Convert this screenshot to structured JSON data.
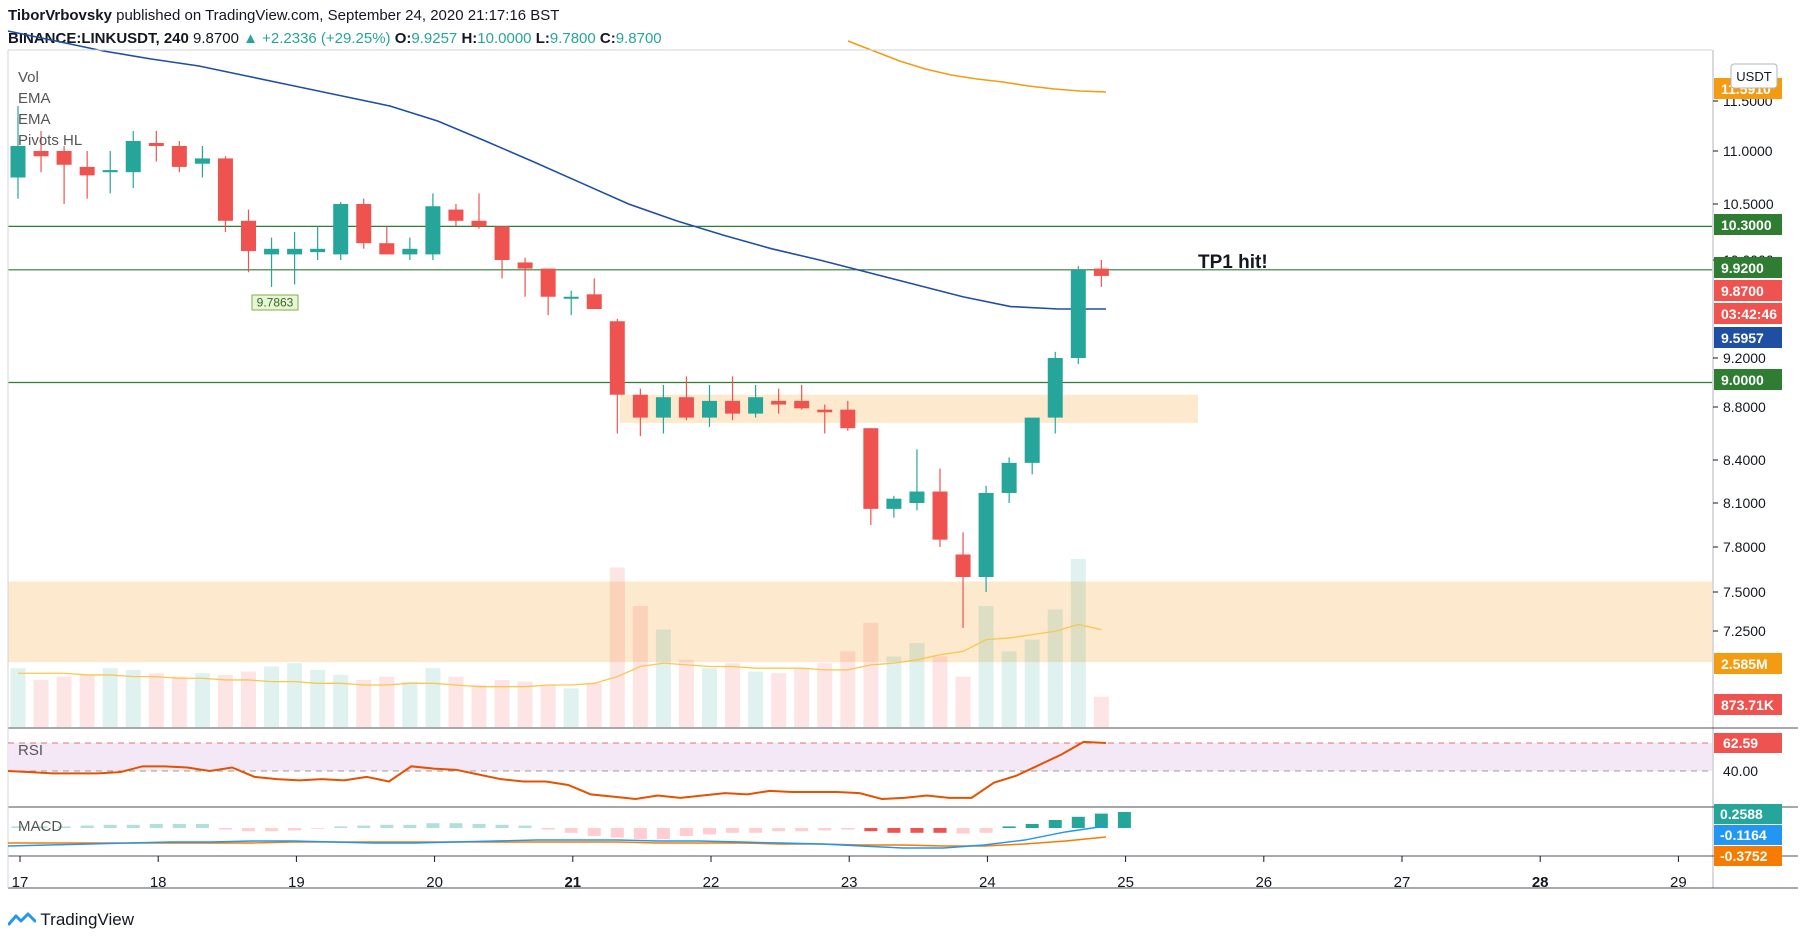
{
  "header": {
    "author": "TiborVrbovsky",
    "published": "published on TradingView.com, September 24, 2020 21:17:16 BST",
    "symbol": "BINANCE:LINKUSDT, 240",
    "last": "9.8700",
    "change": "+2.2336 (+29.25%)",
    "o_label": "O:",
    "o": "9.9257",
    "h_label": "H:",
    "h": "10.0000",
    "l_label": "L:",
    "l": "9.7800",
    "c_label": "C:",
    "c": "9.8700"
  },
  "indicators": [
    "Vol",
    "EMA",
    "EMA",
    "Pivots HL"
  ],
  "annotation": "TP1 hit!",
  "pivot_label": "9.7863",
  "currency": "USDT",
  "footer": {
    "brand": "TradingView"
  },
  "colors": {
    "up": "#26a69a",
    "down": "#ef5350",
    "ema_short": "#1e4fa3",
    "ema_long": "#f39c12",
    "hline": "#2e7d32",
    "zone": "#fde5c4",
    "rsi": "#e65100",
    "macd": "#2196f3",
    "signal": "#f57c00"
  },
  "chart_data": {
    "type": "candlestick",
    "price_axis": {
      "ticks": [
        "11.5000",
        "11.0000",
        "10.5000",
        "10.0000",
        "9.2000",
        "8.8000",
        "8.4000",
        "8.1000",
        "7.8000",
        "7.5000",
        "7.2500"
      ]
    },
    "time_axis": {
      "ticks": [
        "17",
        "18",
        "19",
        "20",
        "21",
        "22",
        "23",
        "24",
        "25",
        "26",
        "27",
        "28",
        "29"
      ],
      "bold": [
        "21",
        "28"
      ]
    },
    "price_labels": [
      {
        "text": "11.5910",
        "color": "#f39c12"
      },
      {
        "text": "10.3000",
        "color": "#2e7d32"
      },
      {
        "text": "9.9200",
        "color": "#2e7d32"
      },
      {
        "text": "9.8700",
        "color": "#ef5350"
      },
      {
        "text": "03:42:46",
        "color": "#ef5350"
      },
      {
        "text": "9.5957",
        "color": "#1e4fa3"
      },
      {
        "text": "9.0000",
        "color": "#2e7d32"
      },
      {
        "text": "2.585M",
        "color": "#f39c12"
      },
      {
        "text": "873.71K",
        "color": "#ef5350"
      }
    ],
    "horizontal_lines": [
      10.3,
      9.92,
      9.0
    ],
    "zones": [
      {
        "from": 8.68,
        "to": 8.9
      },
      {
        "from": 7.05,
        "to": 7.57
      }
    ],
    "candles": [
      {
        "o": 10.75,
        "h": 11.45,
        "l": 10.55,
        "c": 11.05
      },
      {
        "o": 11.0,
        "h": 11.2,
        "l": 10.8,
        "c": 10.95
      },
      {
        "o": 11.0,
        "h": 11.05,
        "l": 10.5,
        "c": 10.87
      },
      {
        "o": 10.85,
        "h": 11.0,
        "l": 10.55,
        "c": 10.77
      },
      {
        "o": 10.8,
        "h": 11.0,
        "l": 10.6,
        "c": 10.82
      },
      {
        "o": 10.8,
        "h": 11.2,
        "l": 10.65,
        "c": 11.1
      },
      {
        "o": 11.08,
        "h": 11.2,
        "l": 10.9,
        "c": 11.05
      },
      {
        "o": 11.05,
        "h": 11.1,
        "l": 10.8,
        "c": 10.85
      },
      {
        "o": 10.88,
        "h": 11.05,
        "l": 10.75,
        "c": 10.93
      },
      {
        "o": 10.93,
        "h": 10.95,
        "l": 10.25,
        "c": 10.35
      },
      {
        "o": 10.35,
        "h": 10.45,
        "l": 9.9,
        "c": 10.08
      },
      {
        "o": 10.05,
        "h": 10.2,
        "l": 9.78,
        "c": 10.1
      },
      {
        "o": 10.05,
        "h": 10.25,
        "l": 9.8,
        "c": 10.1
      },
      {
        "o": 10.07,
        "h": 10.3,
        "l": 10.0,
        "c": 10.1
      },
      {
        "o": 10.05,
        "h": 10.52,
        "l": 10.0,
        "c": 10.5
      },
      {
        "o": 10.5,
        "h": 10.55,
        "l": 10.1,
        "c": 10.15
      },
      {
        "o": 10.15,
        "h": 10.3,
        "l": 10.05,
        "c": 10.05
      },
      {
        "o": 10.05,
        "h": 10.2,
        "l": 10.0,
        "c": 10.1
      },
      {
        "o": 10.05,
        "h": 10.6,
        "l": 10.0,
        "c": 10.48
      },
      {
        "o": 10.45,
        "h": 10.5,
        "l": 10.3,
        "c": 10.35
      },
      {
        "o": 10.35,
        "h": 10.6,
        "l": 10.28,
        "c": 10.3
      },
      {
        "o": 10.3,
        "h": 10.3,
        "l": 9.85,
        "c": 10.0
      },
      {
        "o": 9.98,
        "h": 10.02,
        "l": 9.7,
        "c": 9.93
      },
      {
        "o": 9.93,
        "h": 9.93,
        "l": 9.55,
        "c": 9.7
      },
      {
        "o": 9.7,
        "h": 9.75,
        "l": 9.55,
        "c": 9.7
      },
      {
        "o": 9.72,
        "h": 9.85,
        "l": 9.6,
        "c": 9.6
      },
      {
        "o": 9.5,
        "h": 9.52,
        "l": 8.6,
        "c": 8.9
      },
      {
        "o": 8.9,
        "h": 8.95,
        "l": 8.58,
        "c": 8.72
      },
      {
        "o": 8.72,
        "h": 8.98,
        "l": 8.6,
        "c": 8.88
      },
      {
        "o": 8.88,
        "h": 9.05,
        "l": 8.7,
        "c": 8.72
      },
      {
        "o": 8.72,
        "h": 8.98,
        "l": 8.65,
        "c": 8.85
      },
      {
        "o": 8.85,
        "h": 9.05,
        "l": 8.7,
        "c": 8.75
      },
      {
        "o": 8.75,
        "h": 8.98,
        "l": 8.72,
        "c": 8.88
      },
      {
        "o": 8.85,
        "h": 8.95,
        "l": 8.75,
        "c": 8.82
      },
      {
        "o": 8.85,
        "h": 8.98,
        "l": 8.78,
        "c": 8.79
      },
      {
        "o": 8.78,
        "h": 8.82,
        "l": 8.6,
        "c": 8.76
      },
      {
        "o": 8.78,
        "h": 8.85,
        "l": 8.62,
        "c": 8.64
      },
      {
        "o": 8.64,
        "h": 8.64,
        "l": 7.95,
        "c": 8.06
      },
      {
        "o": 8.06,
        "h": 8.15,
        "l": 8.0,
        "c": 8.13
      },
      {
        "o": 8.1,
        "h": 8.48,
        "l": 8.05,
        "c": 8.18
      },
      {
        "o": 8.18,
        "h": 8.34,
        "l": 7.8,
        "c": 7.85
      },
      {
        "o": 7.75,
        "h": 7.9,
        "l": 7.27,
        "c": 7.6
      },
      {
        "o": 7.6,
        "h": 8.22,
        "l": 7.5,
        "c": 8.17
      },
      {
        "o": 8.17,
        "h": 8.42,
        "l": 8.1,
        "c": 8.38
      },
      {
        "o": 8.38,
        "h": 8.7,
        "l": 8.3,
        "c": 8.72
      },
      {
        "o": 8.72,
        "h": 9.25,
        "l": 8.6,
        "c": 9.2
      },
      {
        "o": 9.2,
        "h": 9.95,
        "l": 9.15,
        "c": 9.92
      },
      {
        "o": 9.93,
        "h": 10.0,
        "l": 9.78,
        "c": 9.87
      }
    ],
    "ema_short": [
      12.2,
      12.1,
      12.0,
      11.92,
      11.85,
      11.75,
      11.65,
      11.55,
      11.45,
      11.3,
      11.1,
      10.9,
      10.7,
      10.5,
      10.35,
      10.22,
      10.1,
      10.0,
      9.9,
      9.8,
      9.7,
      9.62,
      9.6,
      9.6
    ],
    "ema_long_partial": [
      12.1,
      12.0,
      11.9,
      11.82,
      11.76,
      11.72,
      11.69,
      11.65,
      11.62,
      11.6,
      11.59
    ],
    "volume_relative": [
      0.35,
      0.28,
      0.3,
      0.31,
      0.35,
      0.34,
      0.32,
      0.3,
      0.32,
      0.31,
      0.33,
      0.36,
      0.38,
      0.34,
      0.31,
      0.28,
      0.3,
      0.27,
      0.35,
      0.3,
      0.25,
      0.28,
      0.27,
      0.25,
      0.23,
      0.26,
      0.95,
      0.72,
      0.58,
      0.4,
      0.35,
      0.38,
      0.33,
      0.32,
      0.35,
      0.38,
      0.45,
      0.62,
      0.42,
      0.5,
      0.42,
      0.3,
      0.72,
      0.45,
      0.52,
      0.7,
      1.0,
      0.18
    ],
    "volume_ma_relative": [
      0.32,
      0.32,
      0.32,
      0.31,
      0.31,
      0.3,
      0.3,
      0.29,
      0.29,
      0.28,
      0.28,
      0.27,
      0.27,
      0.26,
      0.26,
      0.25,
      0.25,
      0.26,
      0.26,
      0.25,
      0.24,
      0.24,
      0.24,
      0.25,
      0.25,
      0.26,
      0.3,
      0.36,
      0.38,
      0.37,
      0.36,
      0.36,
      0.35,
      0.35,
      0.35,
      0.34,
      0.34,
      0.37,
      0.38,
      0.4,
      0.43,
      0.45,
      0.52,
      0.53,
      0.55,
      0.57,
      0.61,
      0.58
    ],
    "rsi": [
      40,
      39,
      38,
      38,
      38,
      39,
      44,
      44,
      43,
      40,
      43,
      35,
      33,
      32,
      33,
      32,
      35,
      31,
      44,
      42,
      41,
      37,
      33,
      31,
      31,
      28,
      20,
      18,
      16,
      19,
      17,
      19,
      21,
      20,
      23,
      22,
      22,
      22,
      21,
      16,
      17,
      19,
      17,
      17,
      30,
      36,
      45,
      54,
      65,
      64
    ],
    "rsi_levels": [
      "62.59",
      "40.00"
    ],
    "macd_values": [
      "0.2588",
      "-0.1164",
      "-0.3752"
    ],
    "macd_hist_relative": [
      0.1,
      0.1,
      0.1,
      0.15,
      0.2,
      0.2,
      0.25,
      0.25,
      0.25,
      -0.1,
      -0.2,
      -0.2,
      -0.15,
      -0.05,
      0.1,
      0.15,
      0.2,
      0.2,
      0.3,
      0.3,
      0.25,
      0.2,
      0.15,
      -0.1,
      -0.3,
      -0.5,
      -0.6,
      -0.7,
      -0.7,
      -0.5,
      -0.4,
      -0.3,
      -0.3,
      -0.2,
      -0.2,
      -0.15,
      -0.1,
      -0.2,
      -0.3,
      -0.3,
      -0.3,
      -0.35,
      -0.3,
      0.1,
      0.25,
      0.5,
      0.7,
      0.9,
      1.0
    ]
  }
}
